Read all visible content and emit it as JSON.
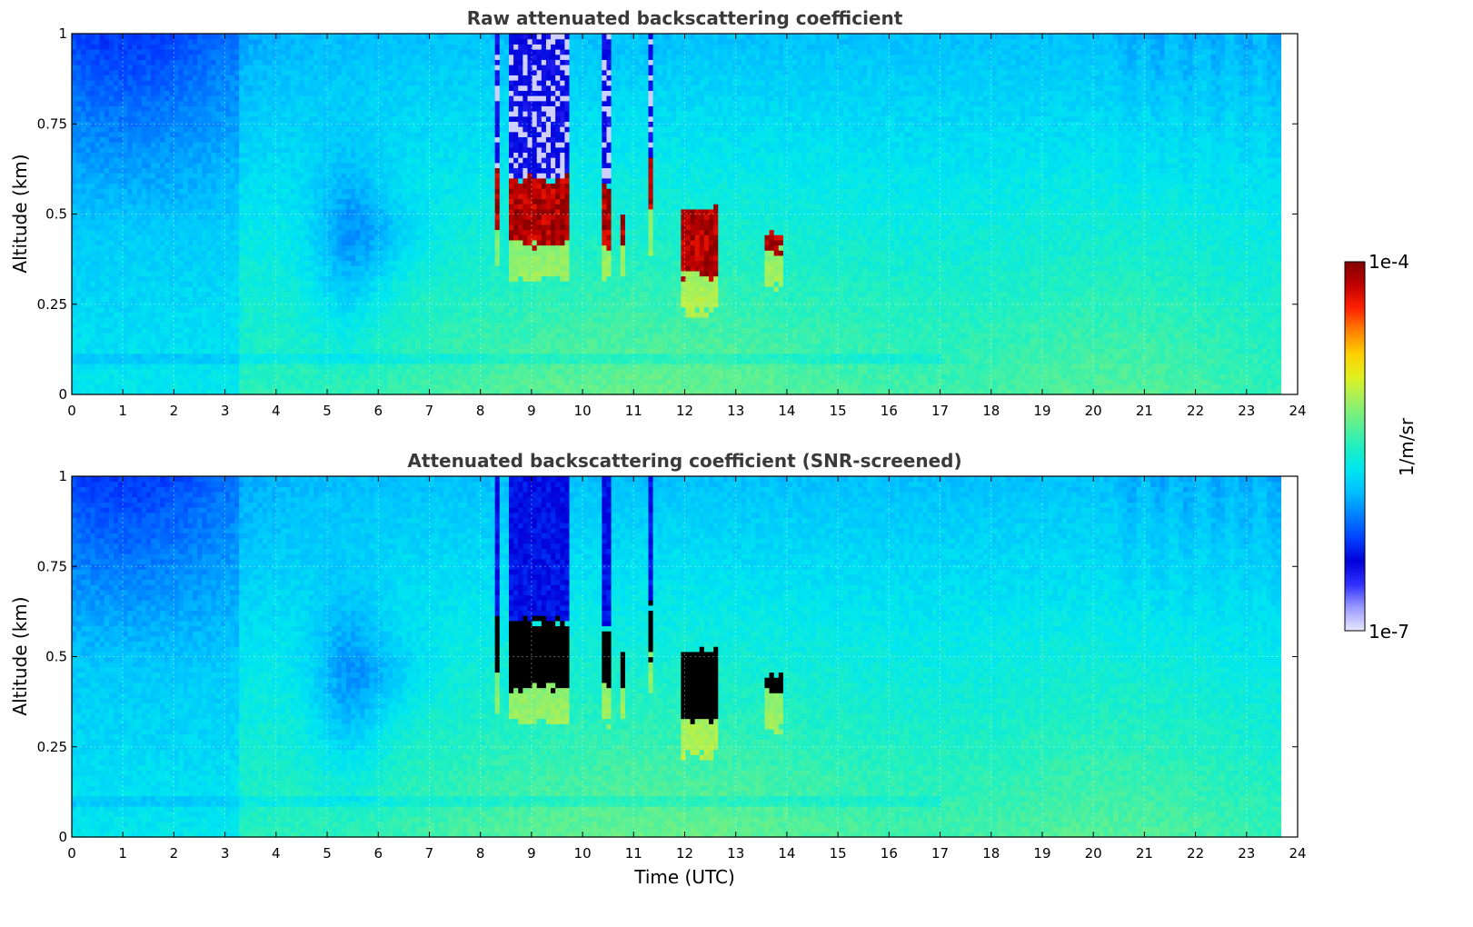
{
  "figure": {
    "colorbar": {
      "max_label": "1e-4",
      "min_label": "1e-7",
      "unit": "1/m/sr",
      "colormap": [
        "#e8e8ff",
        "#9a9aff",
        "#3030ff",
        "#0000d8",
        "#0040ff",
        "#0080ff",
        "#00bfff",
        "#00e6f0",
        "#20f0c0",
        "#60f090",
        "#a0f060",
        "#e0f020",
        "#ffd000",
        "#ff8000",
        "#ff2000",
        "#c00000",
        "#800000"
      ]
    },
    "xlabel": "Time (UTC)"
  },
  "chart_data": [
    {
      "type": "heatmap",
      "title": "Raw attenuated backscattering coefficient",
      "xlabel": "",
      "ylabel": "Altitude (km)",
      "xlim": [
        0,
        24
      ],
      "ylim": [
        0,
        1
      ],
      "x_ticks": [
        "0",
        "1",
        "2",
        "3",
        "4",
        "5",
        "6",
        "7",
        "8",
        "9",
        "10",
        "11",
        "12",
        "13",
        "14",
        "15",
        "16",
        "17",
        "18",
        "19",
        "20",
        "21",
        "22",
        "23",
        "24"
      ],
      "y_ticks": [
        "0",
        "0.25",
        "0.5",
        "0.75",
        "1"
      ],
      "data_extent_time": [
        0,
        23.67
      ],
      "grid": true,
      "cloud_events": [
        {
          "time": [
            8.25,
            8.4
          ],
          "base": 0.45,
          "top": 0.62
        },
        {
          "time": [
            8.55,
            9.7
          ],
          "base": 0.42,
          "top": 0.6
        },
        {
          "time": [
            10.4,
            10.55
          ],
          "base": 0.42,
          "top": 0.58
        },
        {
          "time": [
            10.75,
            10.85
          ],
          "base": 0.42,
          "top": 0.5
        },
        {
          "time": [
            11.3,
            11.38
          ],
          "base": 0.5,
          "top": 0.65
        },
        {
          "time": [
            11.95,
            12.65
          ],
          "base": 0.33,
          "top": 0.52
        },
        {
          "time": [
            13.55,
            13.9
          ],
          "base": 0.4,
          "top": 0.45
        }
      ]
    },
    {
      "type": "heatmap",
      "title": "Attenuated backscattering coefficient (SNR-screened)",
      "xlabel": "Time (UTC)",
      "ylabel": "Altitude (km)",
      "xlim": [
        0,
        24
      ],
      "ylim": [
        0,
        1
      ],
      "x_ticks": [
        "0",
        "1",
        "2",
        "3",
        "4",
        "5",
        "6",
        "7",
        "8",
        "9",
        "10",
        "11",
        "12",
        "13",
        "14",
        "15",
        "16",
        "17",
        "18",
        "19",
        "20",
        "21",
        "22",
        "23",
        "24"
      ],
      "y_ticks": [
        "0",
        "0.25",
        "0.5",
        "0.75",
        "1"
      ],
      "data_extent_time": [
        0,
        23.67
      ],
      "grid": true,
      "screened_value_color": "#000000"
    }
  ]
}
